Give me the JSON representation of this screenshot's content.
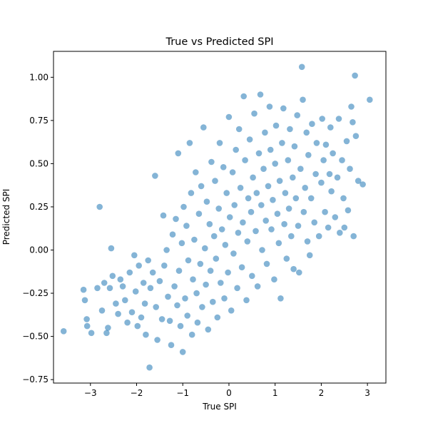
{
  "chart_data": {
    "type": "scatter",
    "title": "True vs Predicted SPI",
    "xlabel": "True SPI",
    "ylabel": "Predicted SPI",
    "xlim": [
      -3.8,
      3.4
    ],
    "ylim": [
      -0.77,
      1.15
    ],
    "xticks": [
      -3,
      -2,
      -1,
      0,
      1,
      2,
      3
    ],
    "xtick_labels": [
      "−3",
      "−2",
      "−1",
      "0",
      "1",
      "2",
      "3"
    ],
    "yticks": [
      -0.75,
      -0.5,
      -0.25,
      0.0,
      0.25,
      0.5,
      0.75,
      1.0
    ],
    "ytick_labels": [
      "−0.75",
      "−0.50",
      "−0.25",
      "0.00",
      "0.25",
      "0.50",
      "0.75",
      "1.00"
    ],
    "grid": false,
    "marker_color": "#1f77b4",
    "marker_alpha": 0.55,
    "series": [
      {
        "points": [
          [
            -3.58,
            -0.47
          ],
          [
            -3.15,
            -0.23
          ],
          [
            -3.12,
            -0.29
          ],
          [
            -3.08,
            -0.4
          ],
          [
            -3.07,
            -0.44
          ],
          [
            -2.98,
            -0.48
          ],
          [
            -2.85,
            -0.22
          ],
          [
            -2.8,
            0.25
          ],
          [
            -2.75,
            -0.35
          ],
          [
            -2.7,
            -0.19
          ],
          [
            -2.65,
            -0.48
          ],
          [
            -2.62,
            -0.45
          ],
          [
            -2.58,
            -0.22
          ],
          [
            -2.55,
            0.01
          ],
          [
            -2.52,
            -0.15
          ],
          [
            -2.45,
            -0.31
          ],
          [
            -2.4,
            -0.37
          ],
          [
            -2.35,
            -0.17
          ],
          [
            -2.3,
            -0.21
          ],
          [
            -2.25,
            -0.29
          ],
          [
            -2.2,
            -0.42
          ],
          [
            -2.15,
            -0.13
          ],
          [
            -2.1,
            -0.36
          ],
          [
            -2.05,
            -0.03
          ],
          [
            -2.02,
            -0.24
          ],
          [
            -1.98,
            -0.44
          ],
          [
            -1.95,
            -0.09
          ],
          [
            -1.9,
            -0.39
          ],
          [
            -1.85,
            -0.19
          ],
          [
            -1.82,
            -0.31
          ],
          [
            -1.8,
            -0.49
          ],
          [
            -1.75,
            -0.06
          ],
          [
            -1.72,
            -0.68
          ],
          [
            -1.7,
            -0.22
          ],
          [
            -1.65,
            -0.13
          ],
          [
            -1.6,
            0.43
          ],
          [
            -1.58,
            -0.33
          ],
          [
            -1.55,
            -0.52
          ],
          [
            -1.5,
            -0.18
          ],
          [
            -1.45,
            -0.4
          ],
          [
            -1.42,
            0.2
          ],
          [
            -1.4,
            -0.09
          ],
          [
            -1.35,
            0.0
          ],
          [
            -1.32,
            -0.27
          ],
          [
            -1.28,
            -0.41
          ],
          [
            -1.25,
            -0.55
          ],
          [
            -1.22,
            0.09
          ],
          [
            -1.18,
            -0.21
          ],
          [
            -1.15,
            0.18
          ],
          [
            -1.12,
            -0.32
          ],
          [
            -1.1,
            0.56
          ],
          [
            -1.08,
            -0.12
          ],
          [
            -1.05,
            -0.44
          ],
          [
            -1.02,
            0.04
          ],
          [
            -1.0,
            -0.59
          ],
          [
            -0.98,
            0.25
          ],
          [
            -0.95,
            -0.28
          ],
          [
            -0.92,
            0.14
          ],
          [
            -0.9,
            -0.38
          ],
          [
            -0.88,
            -0.06
          ],
          [
            -0.85,
            0.62
          ],
          [
            -0.82,
            0.33
          ],
          [
            -0.8,
            -0.49
          ],
          [
            -0.78,
            -0.17
          ],
          [
            -0.75,
            0.06
          ],
          [
            -0.72,
            0.45
          ],
          [
            -0.7,
            -0.25
          ],
          [
            -0.68,
            -0.42
          ],
          [
            -0.65,
            0.21
          ],
          [
            -0.62,
            -0.08
          ],
          [
            -0.6,
            0.37
          ],
          [
            -0.58,
            -0.33
          ],
          [
            -0.55,
            0.71
          ],
          [
            -0.52,
            0.01
          ],
          [
            -0.5,
            -0.2
          ],
          [
            -0.48,
            0.28
          ],
          [
            -0.45,
            -0.46
          ],
          [
            -0.42,
            0.15
          ],
          [
            -0.4,
            -0.12
          ],
          [
            -0.38,
            0.51
          ],
          [
            -0.35,
            -0.3
          ],
          [
            -0.32,
            0.08
          ],
          [
            -0.3,
            0.4
          ],
          [
            -0.28,
            -0.05
          ],
          [
            -0.25,
            -0.39
          ],
          [
            -0.22,
            0.24
          ],
          [
            -0.2,
            0.62
          ],
          [
            -0.18,
            -0.19
          ],
          [
            -0.15,
            0.12
          ],
          [
            -0.12,
            0.48
          ],
          [
            -0.1,
            -0.28
          ],
          [
            -0.08,
            0.03
          ],
          [
            -0.05,
            0.33
          ],
          [
            -0.02,
            -0.13
          ],
          [
            0.0,
            0.77
          ],
          [
            0.02,
            0.19
          ],
          [
            0.05,
            -0.35
          ],
          [
            0.08,
            0.45
          ],
          [
            0.1,
            -0.02
          ],
          [
            0.12,
            0.26
          ],
          [
            0.15,
            0.58
          ],
          [
            0.18,
            -0.22
          ],
          [
            0.2,
            0.1
          ],
          [
            0.22,
            0.7
          ],
          [
            0.25,
            0.36
          ],
          [
            0.28,
            -0.1
          ],
          [
            0.3,
            0.16
          ],
          [
            0.32,
            0.89
          ],
          [
            0.35,
            0.52
          ],
          [
            0.38,
            -0.29
          ],
          [
            0.4,
            0.05
          ],
          [
            0.42,
            0.3
          ],
          [
            0.45,
            0.64
          ],
          [
            0.48,
            0.22
          ],
          [
            0.5,
            -0.15
          ],
          [
            0.52,
            0.42
          ],
          [
            0.55,
            0.79
          ],
          [
            0.58,
            0.11
          ],
          [
            0.6,
            0.33
          ],
          [
            0.62,
            -0.21
          ],
          [
            0.65,
            0.56
          ],
          [
            0.68,
            0.9
          ],
          [
            0.7,
            0.26
          ],
          [
            0.72,
            0.0
          ],
          [
            0.75,
            0.47
          ],
          [
            0.78,
            0.68
          ],
          [
            0.8,
            0.17
          ],
          [
            0.82,
            -0.08
          ],
          [
            0.85,
            0.37
          ],
          [
            0.88,
            0.83
          ],
          [
            0.9,
            0.58
          ],
          [
            0.92,
            0.12
          ],
          [
            0.95,
            0.29
          ],
          [
            0.98,
            -0.17
          ],
          [
            1.0,
            0.5
          ],
          [
            1.02,
            0.72
          ],
          [
            1.05,
            0.21
          ],
          [
            1.08,
            0.04
          ],
          [
            1.1,
            0.4
          ],
          [
            1.12,
            -0.28
          ],
          [
            1.15,
            0.62
          ],
          [
            1.18,
            0.82
          ],
          [
            1.2,
            0.15
          ],
          [
            1.22,
            0.33
          ],
          [
            1.25,
            -0.05
          ],
          [
            1.28,
            0.52
          ],
          [
            1.3,
            0.24
          ],
          [
            1.32,
            0.7
          ],
          [
            1.35,
            0.08
          ],
          [
            1.38,
            0.42
          ],
          [
            1.4,
            -0.11
          ],
          [
            1.42,
            0.6
          ],
          [
            1.45,
            0.3
          ],
          [
            1.48,
            0.78
          ],
          [
            1.5,
            0.14
          ],
          [
            1.52,
            -0.13
          ],
          [
            1.55,
            0.47
          ],
          [
            1.58,
            1.06
          ],
          [
            1.6,
            0.87
          ],
          [
            1.62,
            0.22
          ],
          [
            1.65,
            0.36
          ],
          [
            1.68,
            0.68
          ],
          [
            1.7,
            0.05
          ],
          [
            1.72,
            0.55
          ],
          [
            1.75,
            -0.03
          ],
          [
            1.78,
            0.3
          ],
          [
            1.8,
            0.73
          ],
          [
            1.85,
            0.16
          ],
          [
            1.88,
            0.44
          ],
          [
            1.9,
            0.62
          ],
          [
            1.95,
            0.08
          ],
          [
            2.0,
            0.39
          ],
          [
            2.02,
            0.76
          ],
          [
            2.05,
            0.52
          ],
          [
            2.08,
            0.22
          ],
          [
            2.1,
            0.61
          ],
          [
            2.15,
            0.13
          ],
          [
            2.18,
            0.44
          ],
          [
            2.2,
            0.71
          ],
          [
            2.22,
            0.34
          ],
          [
            2.25,
            0.56
          ],
          [
            2.3,
            0.19
          ],
          [
            2.35,
            0.42
          ],
          [
            2.38,
            0.76
          ],
          [
            2.4,
            0.1
          ],
          [
            2.45,
            0.52
          ],
          [
            2.48,
            0.3
          ],
          [
            2.5,
            0.13
          ],
          [
            2.55,
            0.63
          ],
          [
            2.58,
            0.23
          ],
          [
            2.62,
            0.47
          ],
          [
            2.65,
            0.83
          ],
          [
            2.68,
            0.74
          ],
          [
            2.7,
            0.08
          ],
          [
            2.73,
            1.01
          ],
          [
            2.75,
            0.66
          ],
          [
            2.8,
            0.4
          ],
          [
            2.9,
            0.38
          ],
          [
            3.05,
            0.87
          ]
        ]
      }
    ]
  }
}
